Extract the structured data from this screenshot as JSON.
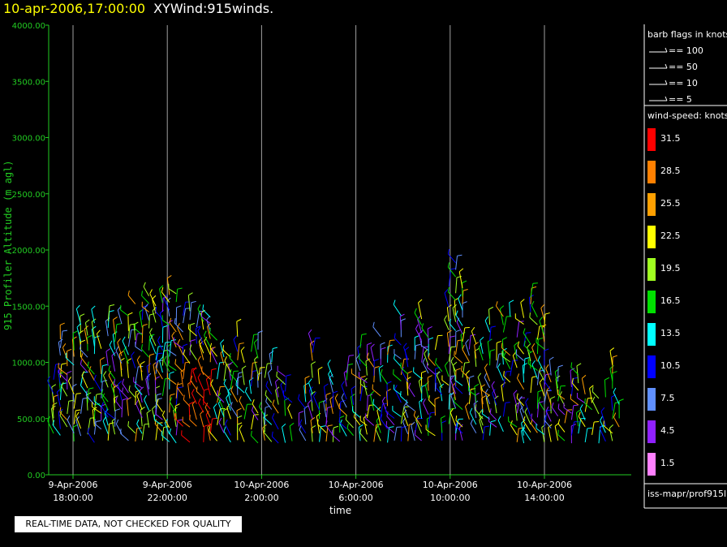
{
  "header": {
    "date": "10-apr-2006,17:00:00",
    "name": "XYWind:915winds."
  },
  "chart_data": {
    "type": "scatter",
    "ylabel": "915 Profiler Altitude (m agl)",
    "xlabel": "time",
    "ylim": [
      0,
      4000
    ],
    "yticks": [
      "0.00",
      "500.00",
      "1000.00",
      "1500.00",
      "2000.00",
      "2500.00",
      "3000.00",
      "3500.00",
      "4000.00"
    ],
    "xticks": [
      {
        "date": "9-Apr-2006",
        "time": "18:00:00"
      },
      {
        "date": "9-Apr-2006",
        "time": "22:00:00"
      },
      {
        "date": "10-Apr-2006",
        "time": "2:00:00"
      },
      {
        "date": "10-Apr-2006",
        "time": "6:00:00"
      },
      {
        "date": "10-Apr-2006",
        "time": "10:00:00"
      },
      {
        "date": "10-Apr-2006",
        "time": "14:00:00"
      }
    ],
    "grid": "vertical"
  },
  "legend": {
    "barb_title": "barb flags in knots",
    "barbs": [
      "== 100",
      "== 50",
      "== 10",
      "== 5"
    ],
    "speed_title": "wind-speed: knots",
    "speeds": [
      {
        "label": "31.5",
        "color": "#ff0000"
      },
      {
        "label": "28.5",
        "color": "#ff8000"
      },
      {
        "label": "25.5",
        "color": "#ffa000"
      },
      {
        "label": "22.5",
        "color": "#ffff00"
      },
      {
        "label": "19.5",
        "color": "#a0ff20"
      },
      {
        "label": "16.5",
        "color": "#00e000"
      },
      {
        "label": "13.5",
        "color": "#00ffff"
      },
      {
        "label": "10.5",
        "color": "#0000ff"
      },
      {
        "label": "7.5",
        "color": "#6090ff"
      },
      {
        "label": "4.5",
        "color": "#9020ff"
      },
      {
        "label": "1.5",
        "color": "#ff80ff"
      }
    ],
    "source": "iss-mapr/prof915l"
  },
  "footer": {
    "note": "REAL-TIME DATA, NOT CHECKED FOR QUALITY"
  }
}
